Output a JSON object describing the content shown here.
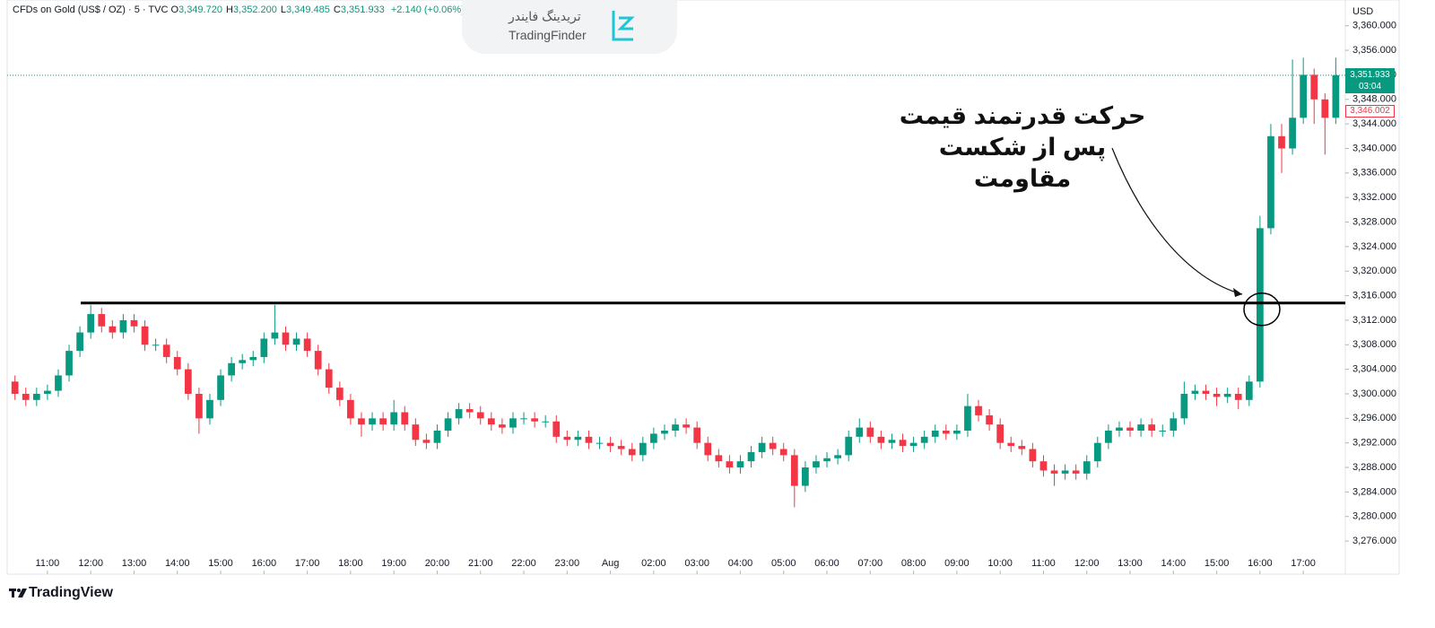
{
  "chart_data": {
    "type": "candlestick",
    "header": {
      "symbol": "CFDs on Gold (US$ / OZ) · 5 · TVC",
      "ohlc": [
        {
          "key": "O",
          "value": "3,349.720"
        },
        {
          "key": "H",
          "value": "3,352.200"
        },
        {
          "key": "L",
          "value": "3,349.485"
        },
        {
          "key": "C",
          "value": "3,351.933"
        }
      ],
      "change": "+2.140 (+0.06%)"
    },
    "watermark": {
      "persian": "تریدینگ فایندر",
      "latin": "TradingFinder"
    },
    "currency": "USD",
    "annotation": [
      "حرکت قدرتمند قیمت",
      "پس از شکست",
      "مقاومت"
    ],
    "footer": "TradingView",
    "up_color": "#089981",
    "down_color": "#f23645",
    "grid": false,
    "resistance_level": 3314.8,
    "last_price": {
      "value": 3351.933,
      "label": "3,351.933",
      "countdown": "03:04"
    },
    "marker_price": {
      "value": 3346.002,
      "label": "3,346.002"
    },
    "xlim": [
      -0.93,
      29.97
    ],
    "ylim": [
      3270.6,
      3364.2
    ],
    "xticks": [
      {
        "value": 0,
        "label": "11:00"
      },
      {
        "value": 1,
        "label": "12:00"
      },
      {
        "value": 2,
        "label": "13:00"
      },
      {
        "value": 3,
        "label": "14:00"
      },
      {
        "value": 4,
        "label": "15:00"
      },
      {
        "value": 5,
        "label": "16:00"
      },
      {
        "value": 6,
        "label": "17:00"
      },
      {
        "value": 7,
        "label": "18:00"
      },
      {
        "value": 8,
        "label": "19:00"
      },
      {
        "value": 9,
        "label": "20:00"
      },
      {
        "value": 10,
        "label": "21:00"
      },
      {
        "value": 11,
        "label": "22:00"
      },
      {
        "value": 12,
        "label": "23:00"
      },
      {
        "value": 13,
        "label": "Aug"
      },
      {
        "value": 14,
        "label": "02:00"
      },
      {
        "value": 15,
        "label": "03:00"
      },
      {
        "value": 16,
        "label": "04:00"
      },
      {
        "value": 17,
        "label": "05:00"
      },
      {
        "value": 18,
        "label": "06:00"
      },
      {
        "value": 19,
        "label": "07:00"
      },
      {
        "value": 20,
        "label": "08:00"
      },
      {
        "value": 21,
        "label": "09:00"
      },
      {
        "value": 22,
        "label": "10:00"
      },
      {
        "value": 23,
        "label": "11:00"
      },
      {
        "value": 24,
        "label": "12:00"
      },
      {
        "value": 25,
        "label": "13:00"
      },
      {
        "value": 26,
        "label": "14:00"
      },
      {
        "value": 27,
        "label": "15:00"
      },
      {
        "value": 28,
        "label": "16:00"
      },
      {
        "value": 29,
        "label": "17:00"
      }
    ],
    "yticks": [
      {
        "value": 3276,
        "label": "3,276.000"
      },
      {
        "value": 3280,
        "label": "3,280.000"
      },
      {
        "value": 3284,
        "label": "3,284.000"
      },
      {
        "value": 3288,
        "label": "3,288.000"
      },
      {
        "value": 3292,
        "label": "3,292.000"
      },
      {
        "value": 3296,
        "label": "3,296.000"
      },
      {
        "value": 3300,
        "label": "3,300.000"
      },
      {
        "value": 3304,
        "label": "3,304.000"
      },
      {
        "value": 3308,
        "label": "3,308.000"
      },
      {
        "value": 3312,
        "label": "3,312.000"
      },
      {
        "value": 3316,
        "label": "3,316.000"
      },
      {
        "value": 3320,
        "label": "3,320.000"
      },
      {
        "value": 3324,
        "label": "3,324.000"
      },
      {
        "value": 3328,
        "label": "3,328.000"
      },
      {
        "value": 3332,
        "label": "3,332.000"
      },
      {
        "value": 3336,
        "label": "3,336.000"
      },
      {
        "value": 3340,
        "label": "3,340.000"
      },
      {
        "value": 3344,
        "label": "3,344.000"
      },
      {
        "value": 3348,
        "label": "3,348.000"
      },
      {
        "value": 3352,
        "label": "3,352.000"
      },
      {
        "value": 3356,
        "label": "3,356.000"
      },
      {
        "value": 3360,
        "label": "3,360.000"
      }
    ],
    "x": [
      -0.75,
      -0.5,
      -0.25,
      0,
      0.25,
      0.5,
      0.75,
      1,
      1.25,
      1.5,
      1.75,
      2,
      2.25,
      2.5,
      2.75,
      3,
      3.25,
      3.5,
      3.75,
      4,
      4.25,
      4.5,
      4.75,
      5,
      5.25,
      5.5,
      5.75,
      6,
      6.25,
      6.5,
      6.75,
      7,
      7.25,
      7.5,
      7.75,
      8,
      8.25,
      8.5,
      8.75,
      9,
      9.25,
      9.5,
      9.75,
      10,
      10.25,
      10.5,
      10.75,
      11,
      11.25,
      11.5,
      11.75,
      12,
      12.25,
      12.5,
      12.75,
      13,
      13.25,
      13.5,
      13.75,
      14,
      14.25,
      14.5,
      14.75,
      15,
      15.25,
      15.5,
      15.75,
      16,
      16.25,
      16.5,
      16.75,
      17,
      17.25,
      17.5,
      17.75,
      18,
      18.25,
      18.5,
      18.75,
      19,
      19.25,
      19.5,
      19.75,
      20,
      20.25,
      20.5,
      20.75,
      21,
      21.25,
      21.5,
      21.75,
      22,
      22.25,
      22.5,
      22.75,
      23,
      23.25,
      23.5,
      23.75,
      24,
      24.25,
      24.5,
      24.75,
      25,
      25.25,
      25.5,
      25.75,
      26,
      26.25,
      26.5,
      26.75,
      27,
      27.25,
      27.5,
      27.75,
      28,
      28.25,
      28.5,
      28.75,
      29,
      29.25,
      29.5,
      29.75
    ],
    "open": [
      3302,
      3300,
      3299,
      3300,
      3300.5,
      3303,
      3307,
      3310,
      3313,
      3311,
      3310,
      3312,
      3311,
      3308,
      3308,
      3306,
      3304,
      3300,
      3296,
      3299,
      3303,
      3305,
      3305.5,
      3306,
      3309,
      3310,
      3308,
      3309,
      3307,
      3304,
      3301,
      3299,
      3296,
      3295,
      3296,
      3295,
      3297,
      3295,
      3292.5,
      3292,
      3294,
      3296,
      3297.5,
      3297,
      3296,
      3295,
      3294.5,
      3296,
      3296,
      3295.5,
      3295.5,
      3293,
      3292.5,
      3293,
      3292,
      3292,
      3291.5,
      3291,
      3290,
      3292,
      3293.5,
      3294,
      3295,
      3294.5,
      3292,
      3290,
      3289,
      3288,
      3289,
      3290.5,
      3292,
      3291,
      3290,
      3285,
      3288,
      3289,
      3289.5,
      3290,
      3293,
      3294.5,
      3293,
      3292,
      3292.5,
      3291.5,
      3292,
      3293,
      3294,
      3293.5,
      3294,
      3298,
      3296.5,
      3295,
      3292,
      3291.5,
      3291,
      3289,
      3287.5,
      3287,
      3287.5,
      3287,
      3289,
      3292,
      3294,
      3294.5,
      3294,
      3295,
      3294,
      3294,
      3296,
      3300,
      3300.5,
      3300,
      3299.5,
      3300,
      3299,
      3302,
      3327,
      3342,
      3340,
      3345,
      3352,
      3348,
      3345
    ],
    "high": [
      3303,
      3301,
      3301,
      3301.5,
      3304,
      3308,
      3311,
      3314.5,
      3314,
      3312,
      3313,
      3313,
      3312,
      3309,
      3309,
      3307,
      3305,
      3301,
      3300,
      3304,
      3306,
      3306.5,
      3307,
      3310,
      3314.5,
      3311,
      3310,
      3310,
      3308,
      3305,
      3302,
      3300,
      3297,
      3297,
      3297,
      3299,
      3298,
      3296,
      3293.5,
      3295,
      3297,
      3298.5,
      3298.5,
      3298,
      3297,
      3296,
      3297,
      3297,
      3297,
      3296.5,
      3296.5,
      3294,
      3294,
      3294,
      3293,
      3293,
      3292.5,
      3292,
      3293,
      3294.5,
      3295,
      3296,
      3296,
      3295.5,
      3293,
      3291,
      3290,
      3290,
      3291.5,
      3293,
      3293,
      3292,
      3291,
      3289,
      3290,
      3290.5,
      3291,
      3294,
      3296,
      3295.5,
      3294,
      3293.5,
      3293.5,
      3293,
      3294,
      3295,
      3295,
      3295,
      3300,
      3299,
      3297.5,
      3296,
      3293,
      3292.5,
      3292,
      3290,
      3288.5,
      3288.5,
      3288.5,
      3290,
      3293,
      3295,
      3295.5,
      3295.5,
      3296,
      3296,
      3295,
      3297,
      3302,
      3301.5,
      3301.5,
      3301,
      3301,
      3301,
      3303,
      3329,
      3344,
      3344,
      3354.5,
      3354.8,
      3353,
      3349,
      3354.8
    ],
    "low": [
      3299,
      3298,
      3298,
      3299,
      3299.5,
      3302,
      3306,
      3309,
      3310,
      3309,
      3309,
      3310,
      3307,
      3307,
      3305,
      3303,
      3299,
      3293.5,
      3295,
      3298,
      3302,
      3304,
      3304.5,
      3305,
      3308,
      3307,
      3307,
      3306,
      3303,
      3300,
      3298,
      3295,
      3293,
      3294,
      3294,
      3294,
      3294,
      3291.5,
      3291,
      3291,
      3293,
      3295,
      3296,
      3295,
      3294,
      3293.5,
      3293.5,
      3295,
      3294.5,
      3294.5,
      3292,
      3291.5,
      3291.5,
      3291,
      3291,
      3290.5,
      3290,
      3289,
      3289,
      3291,
      3292.5,
      3293,
      3293.5,
      3291,
      3289,
      3288,
      3287,
      3287,
      3288,
      3289.5,
      3290,
      3289,
      3281.5,
      3284,
      3287,
      3288,
      3288.5,
      3289,
      3292,
      3292,
      3291,
      3291,
      3290.5,
      3290.5,
      3291,
      3292,
      3292.5,
      3292.5,
      3293,
      3295.5,
      3294,
      3291,
      3290.5,
      3290,
      3288,
      3286.5,
      3285,
      3286,
      3286,
      3286,
      3288,
      3291,
      3293,
      3293,
      3293,
      3293,
      3293,
      3293,
      3295,
      3299,
      3299,
      3298,
      3298.5,
      3297.5,
      3298,
      3301,
      3326,
      3336,
      3339,
      3344,
      3344,
      3339,
      3344
    ],
    "close": [
      3300,
      3299,
      3300,
      3300.5,
      3303,
      3307,
      3310,
      3313,
      3311,
      3310,
      3312,
      3311,
      3308,
      3308,
      3306,
      3304,
      3300,
      3296,
      3299,
      3303,
      3305,
      3305.5,
      3306,
      3309,
      3310,
      3308,
      3309,
      3307,
      3304,
      3301,
      3299,
      3296,
      3295,
      3296,
      3295,
      3297,
      3295,
      3292.5,
      3292,
      3294,
      3296,
      3297.5,
      3297,
      3296,
      3295,
      3294.5,
      3296,
      3296,
      3295.5,
      3295.5,
      3293,
      3292.5,
      3293,
      3292,
      3292,
      3291.5,
      3291,
      3290,
      3292,
      3293.5,
      3294,
      3295,
      3294.5,
      3292,
      3290,
      3289,
      3288,
      3289,
      3290.5,
      3292,
      3291,
      3290,
      3285,
      3288,
      3289,
      3289.5,
      3290,
      3293,
      3294.5,
      3293,
      3292,
      3292.5,
      3291.5,
      3292,
      3293,
      3294,
      3293.5,
      3294,
      3298,
      3296.5,
      3295,
      3292,
      3291.5,
      3291,
      3289,
      3287.5,
      3287,
      3287.5,
      3287,
      3289,
      3292,
      3294,
      3294.5,
      3294,
      3295,
      3294,
      3294,
      3296,
      3300,
      3300.5,
      3300,
      3299.5,
      3300,
      3299,
      3302,
      3327,
      3342,
      3340,
      3345,
      3352,
      3348,
      3345,
      3351.933
    ]
  }
}
